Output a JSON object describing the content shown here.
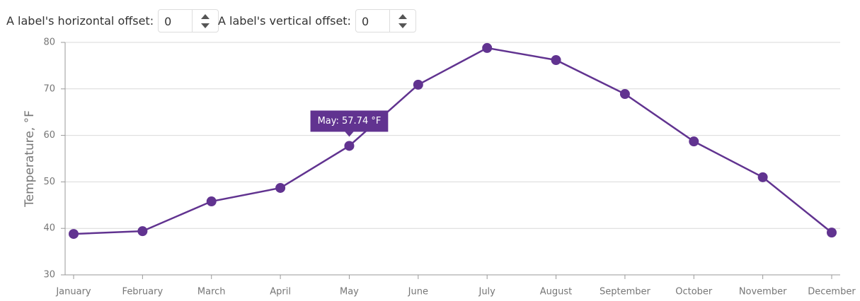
{
  "controls": [
    {
      "label": "A label's horizontal offset:",
      "value": 0
    },
    {
      "label": "A label's vertical offset:",
      "value": 0
    }
  ],
  "chart_data": {
    "type": "line",
    "y_axis_label": "Temperature, °F",
    "categories": [
      "January",
      "February",
      "March",
      "April",
      "May",
      "June",
      "July",
      "August",
      "September",
      "October",
      "November",
      "December"
    ],
    "series": [
      {
        "name": "Temperature",
        "color": "#613390",
        "values": [
          38.8,
          39.4,
          45.8,
          48.7,
          57.74,
          70.9,
          78.8,
          76.2,
          68.9,
          58.7,
          51.0,
          39.1
        ]
      }
    ],
    "tooltip": "May: 57.74 °F",
    "ylim": [
      30,
      80
    ],
    "yticks": [
      30,
      40,
      50,
      60,
      70,
      80
    ],
    "grid": true
  }
}
